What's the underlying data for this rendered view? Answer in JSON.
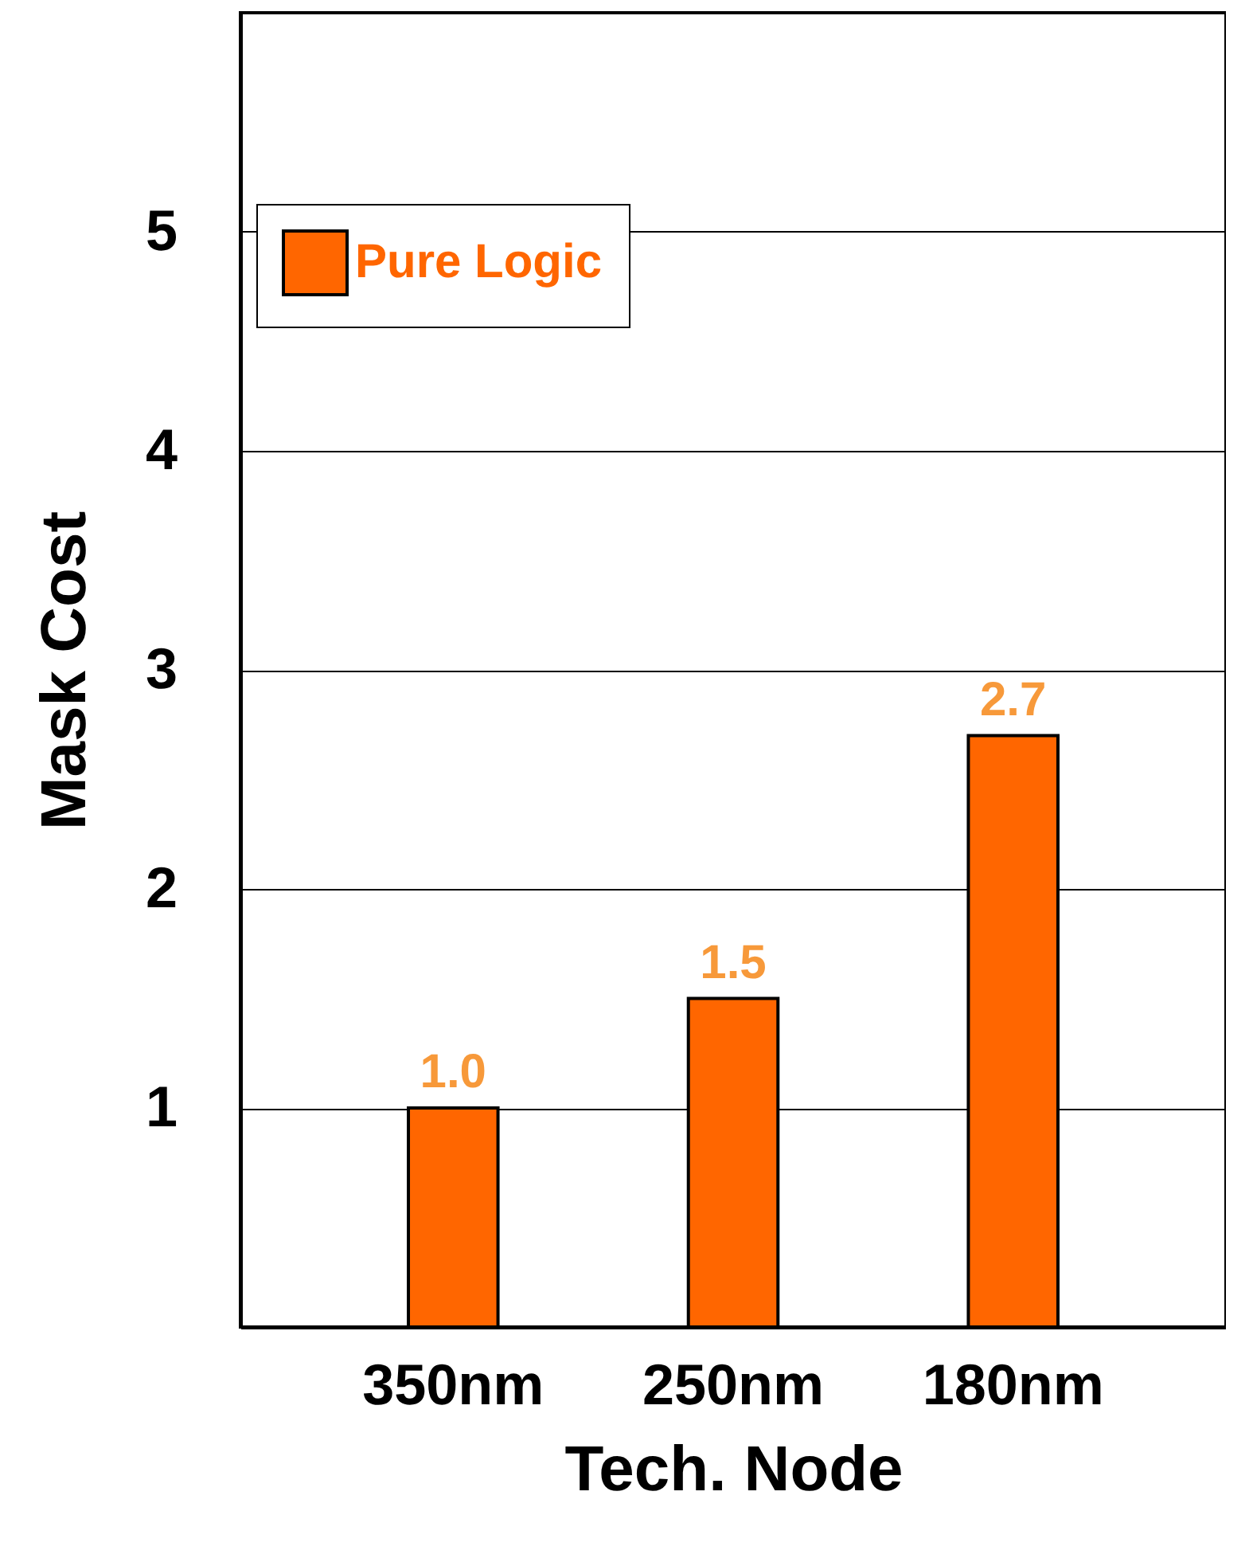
{
  "chart_data": {
    "type": "bar",
    "xlabel": "Tech. Node",
    "ylabel": "Mask Cost",
    "categories": [
      "350nm",
      "250nm",
      "180nm"
    ],
    "series": [
      {
        "name": "Pure Logic",
        "color": "#ff6600",
        "values": [
          1.0,
          1.5,
          2.7
        ],
        "value_labels": [
          "1.0",
          "1.5",
          "2.7"
        ]
      }
    ],
    "ylim": [
      0,
      6
    ],
    "yticks": [
      1,
      2,
      3,
      4,
      5
    ],
    "grid": "y",
    "legend": "top left"
  }
}
